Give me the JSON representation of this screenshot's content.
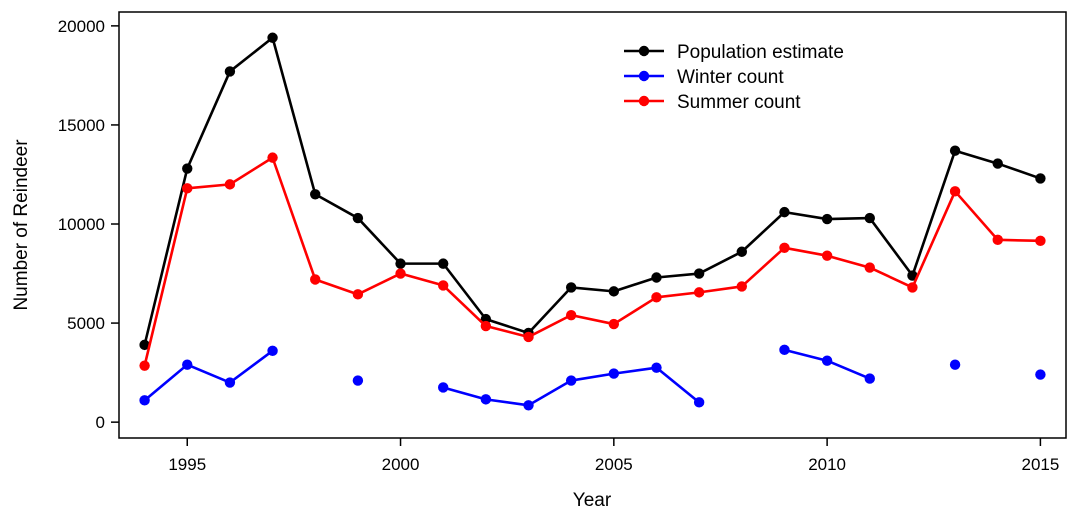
{
  "chart_data": {
    "type": "line",
    "title": "",
    "xlabel": "Year",
    "ylabel": "Number of Reindeer",
    "xlim": [
      1993.4,
      2015.6
    ],
    "ylim": [
      -800,
      20700
    ],
    "xticks": [
      1995,
      2000,
      2005,
      2010,
      2015
    ],
    "yticks": [
      0,
      5000,
      10000,
      15000,
      20000
    ],
    "grid": false,
    "legend_position": "top-right",
    "x": [
      1994,
      1995,
      1996,
      1997,
      1998,
      1999,
      2000,
      2001,
      2002,
      2003,
      2004,
      2005,
      2006,
      2007,
      2008,
      2009,
      2010,
      2011,
      2012,
      2013,
      2014,
      2015
    ],
    "series": [
      {
        "name": "Population estimate",
        "color": "#000000",
        "values": [
          3900,
          12800,
          17700,
          19400,
          11500,
          10300,
          8000,
          8000,
          5200,
          4500,
          6800,
          6600,
          7300,
          7500,
          8600,
          10600,
          10250,
          10300,
          7400,
          13700,
          13050,
          12300
        ]
      },
      {
        "name": "Winter count",
        "color": "#0000ff",
        "values": [
          1100,
          2900,
          2000,
          3600,
          null,
          2100,
          null,
          1750,
          1150,
          850,
          2100,
          2450,
          2750,
          1000,
          null,
          3650,
          3100,
          2200,
          null,
          2900,
          null,
          2400
        ]
      },
      {
        "name": "Summer count",
        "color": "#ff0000",
        "values": [
          2850,
          11800,
          12000,
          13350,
          7200,
          6450,
          7500,
          6900,
          4850,
          4300,
          5400,
          4950,
          6300,
          6550,
          6850,
          8800,
          8400,
          7800,
          6800,
          11650,
          9200,
          9150
        ]
      }
    ]
  }
}
